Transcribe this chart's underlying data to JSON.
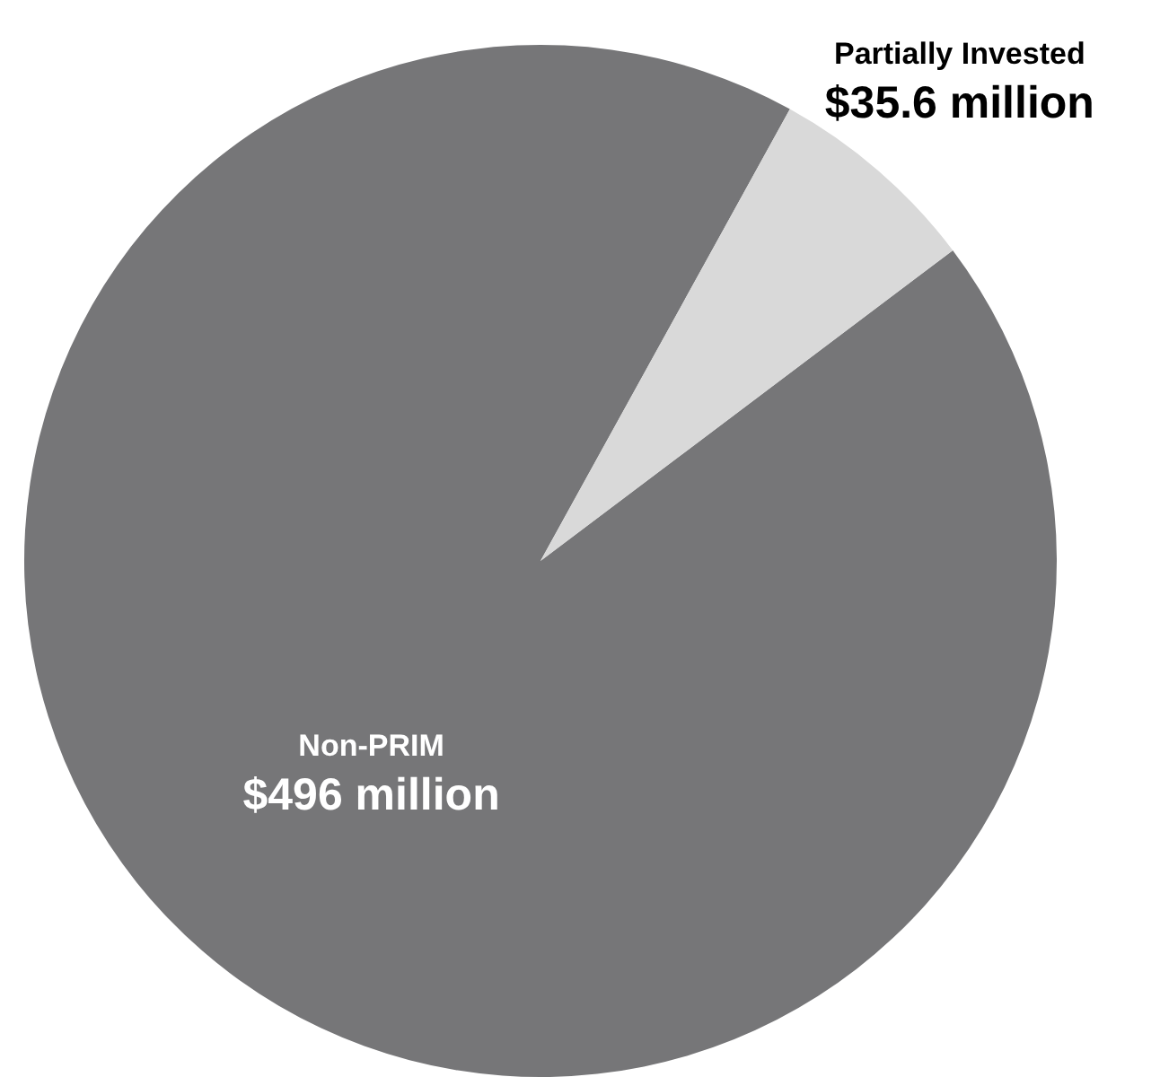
{
  "chart_data": {
    "type": "pie",
    "categories": [
      "Non-PRIM",
      "Partially Invested"
    ],
    "values": [
      496,
      35.6
    ],
    "value_labels": [
      "$496 million",
      "$35.6 million"
    ],
    "colors": [
      "#767678",
      "#d9d9d9"
    ],
    "legend": false
  }
}
